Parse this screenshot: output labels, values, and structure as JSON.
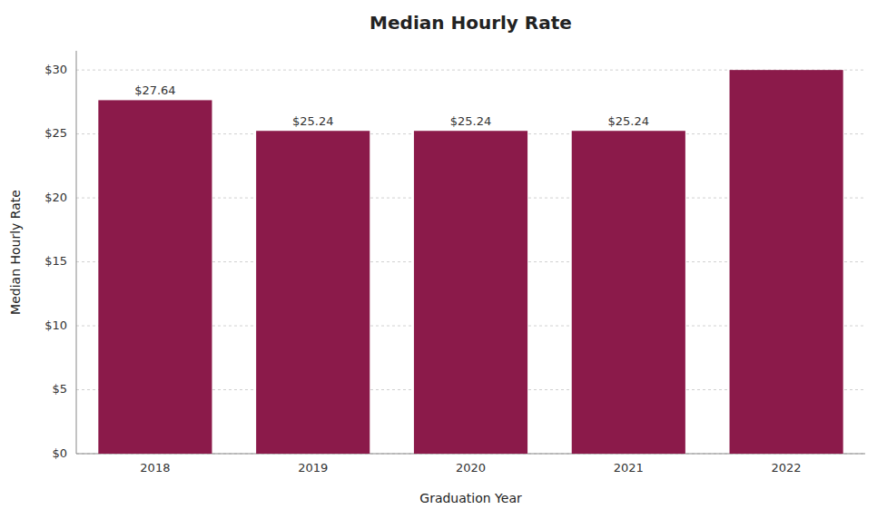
{
  "chart_data": {
    "type": "bar",
    "title": "Median Hourly Rate",
    "xlabel": "Graduation Year",
    "ylabel": "Median Hourly Rate",
    "categories": [
      "2018",
      "2019",
      "2020",
      "2021",
      "2022"
    ],
    "values": [
      27.64,
      25.24,
      25.24,
      25.24,
      30.0
    ],
    "value_labels": [
      "$27.64",
      "$25.24",
      "$25.24",
      "$25.24",
      null
    ],
    "data_labels": true,
    "color": "#8B1A4A",
    "ylim": [
      0,
      31.5
    ],
    "yticks": [
      {
        "value": 0,
        "label": "$0"
      },
      {
        "value": 5,
        "label": "$5"
      },
      {
        "value": 10,
        "label": "$10"
      },
      {
        "value": 15,
        "label": "$15"
      },
      {
        "value": 20,
        "label": "$20"
      },
      {
        "value": 25,
        "label": "$25"
      },
      {
        "value": 30,
        "label": "$30"
      }
    ],
    "grid": true
  }
}
